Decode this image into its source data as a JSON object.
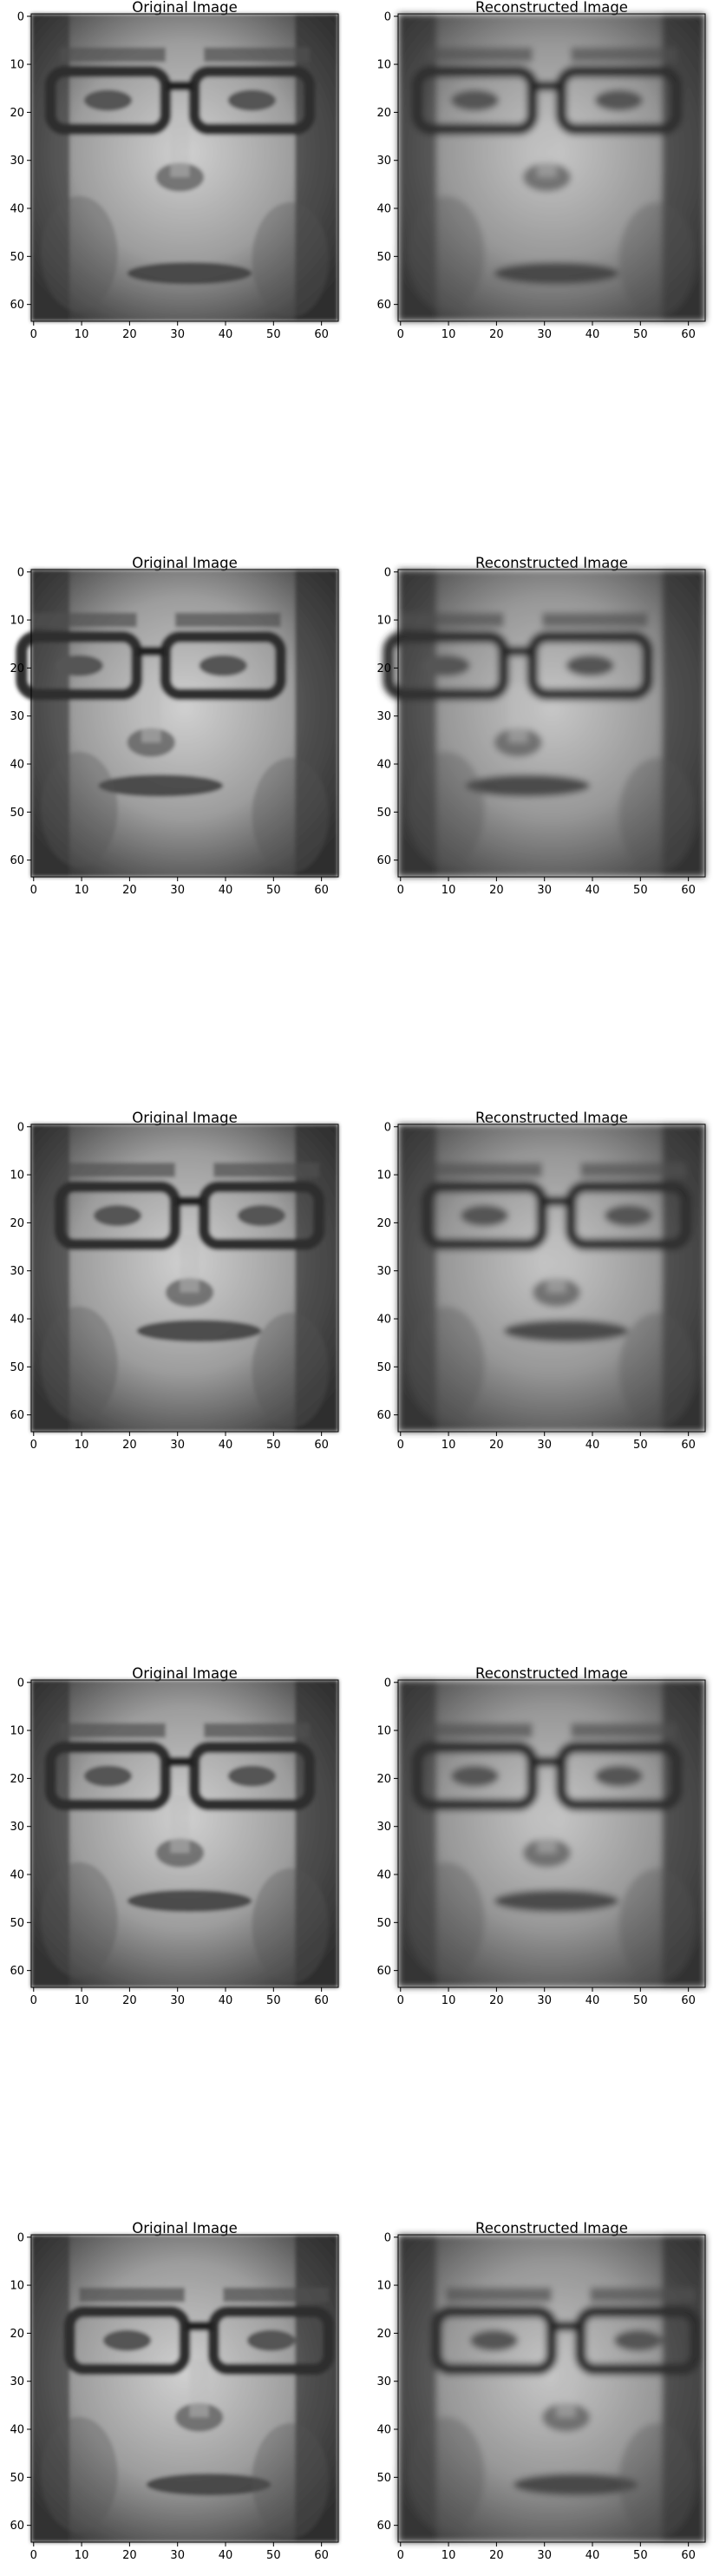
{
  "figure": {
    "rows": [
      {
        "left_title": "Original Image",
        "right_title": "Reconstructed Image"
      },
      {
        "left_title": "Original Image",
        "right_title": "Reconstructed Image"
      },
      {
        "left_title": "Original Image",
        "right_title": "Reconstructed Image"
      },
      {
        "left_title": "Original Image",
        "right_title": "Reconstructed Image"
      },
      {
        "left_title": "Original Image",
        "right_title": "Reconstructed Image"
      }
    ],
    "x_ticks": [
      "0",
      "10",
      "20",
      "30",
      "40",
      "50",
      "60"
    ],
    "y_ticks": [
      "0",
      "10",
      "20",
      "30",
      "40",
      "50",
      "60"
    ],
    "image_description": "grayscale 64x64 face images (pixel-art style); each row shows an original face and its reconstruction"
  }
}
